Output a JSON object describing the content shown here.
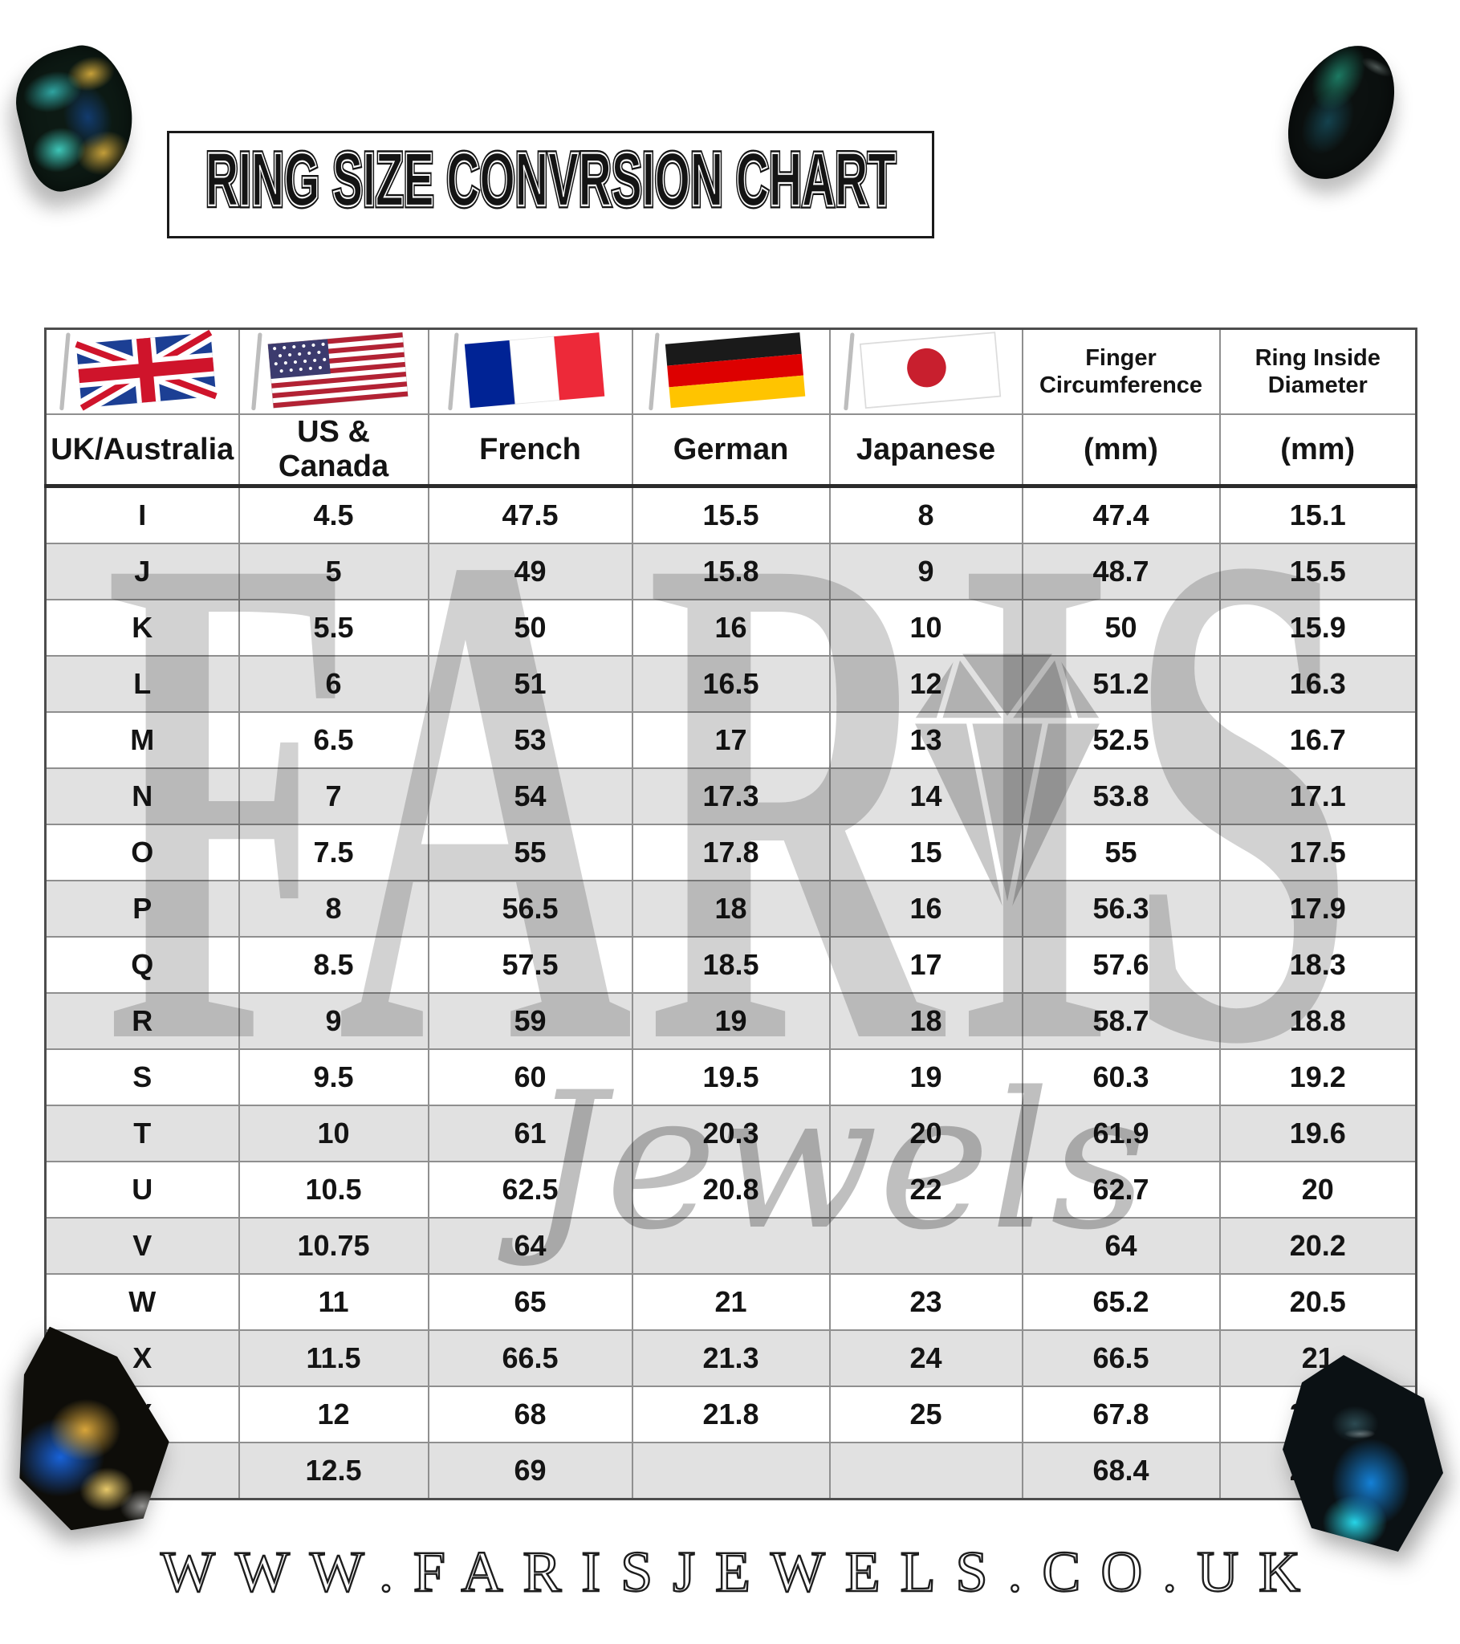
{
  "title": "RING SIZE CONVRSION CHART",
  "website": "WWW.FARISJEWELS.CO.UK",
  "watermark": {
    "brand": "FARIS",
    "sub": "Jewels"
  },
  "icons": {
    "uk-flag-icon": "United Kingdom waving flag",
    "us-flag-icon": "United States waving flag",
    "france-flag-icon": "France waving flag",
    "germany-flag-icon": "Germany waving flag",
    "japan-flag-icon": "Japan waving flag",
    "diamond-watermark-icon": "cut diamond outline"
  },
  "colors": {
    "row_alt": "#e1e1e1",
    "cell_border": "#8f8f8f",
    "outer_border": "#4d4d4d",
    "watermark": "#d2d2d2",
    "text": "#141414",
    "uk_blue": "#1c3f94",
    "uk_red": "#cf142b",
    "us_red": "#b22234",
    "us_blue": "#3c3b6e",
    "fr_blue": "#002395",
    "fr_red": "#ed2939",
    "de_black": "#1a1a1a",
    "de_red": "#dd0000",
    "de_gold": "#ffc400",
    "jp_red": "#c81f2e"
  },
  "chart_data": {
    "type": "table",
    "columns": [
      {
        "label": "UK/Australia",
        "header_top": "",
        "flag": "uk-flag-icon"
      },
      {
        "label": "US & Canada",
        "header_top": "",
        "flag": "us-flag-icon"
      },
      {
        "label": "French",
        "header_top": "",
        "flag": "france-flag-icon"
      },
      {
        "label": "German",
        "header_top": "",
        "flag": "germany-flag-icon"
      },
      {
        "label": "Japanese",
        "header_top": "",
        "flag": "japan-flag-icon"
      },
      {
        "label": "(mm)",
        "header_top": "Finger Circumference",
        "flag": ""
      },
      {
        "label": "(mm)",
        "header_top": "Ring Inside Diameter",
        "flag": ""
      }
    ],
    "rows": [
      [
        "I",
        "4.5",
        "47.5",
        "15.5",
        "8",
        "47.4",
        "15.1"
      ],
      [
        "J",
        "5",
        "49",
        "15.8",
        "9",
        "48.7",
        "15.5"
      ],
      [
        "K",
        "5.5",
        "50",
        "16",
        "10",
        "50",
        "15.9"
      ],
      [
        "L",
        "6",
        "51",
        "16.5",
        "12",
        "51.2",
        "16.3"
      ],
      [
        "M",
        "6.5",
        "53",
        "17",
        "13",
        "52.5",
        "16.7"
      ],
      [
        "N",
        "7",
        "54",
        "17.3",
        "14",
        "53.8",
        "17.1"
      ],
      [
        "O",
        "7.5",
        "55",
        "17.8",
        "15",
        "55",
        "17.5"
      ],
      [
        "P",
        "8",
        "56.5",
        "18",
        "16",
        "56.3",
        "17.9"
      ],
      [
        "Q",
        "8.5",
        "57.5",
        "18.5",
        "17",
        "57.6",
        "18.3"
      ],
      [
        "R",
        "9",
        "59",
        "19",
        "18",
        "58.7",
        "18.8"
      ],
      [
        "S",
        "9.5",
        "60",
        "19.5",
        "19",
        "60.3",
        "19.2"
      ],
      [
        "T",
        "10",
        "61",
        "20.3",
        "20",
        "61.9",
        "19.6"
      ],
      [
        "U",
        "10.5",
        "62.5",
        "20.8",
        "22",
        "62.7",
        "20"
      ],
      [
        "V",
        "10.75",
        "64",
        "",
        "",
        "64",
        "20.2"
      ],
      [
        "W",
        "11",
        "65",
        "21",
        "23",
        "65.2",
        "20.5"
      ],
      [
        "X",
        "11.5",
        "66.5",
        "21.3",
        "24",
        "66.5",
        "21"
      ],
      [
        "Y",
        "12",
        "68",
        "21.8",
        "25",
        "67.8",
        "21.4"
      ],
      [
        "z",
        "12.5",
        "69",
        "",
        "",
        "68.4",
        "21.8"
      ]
    ]
  }
}
